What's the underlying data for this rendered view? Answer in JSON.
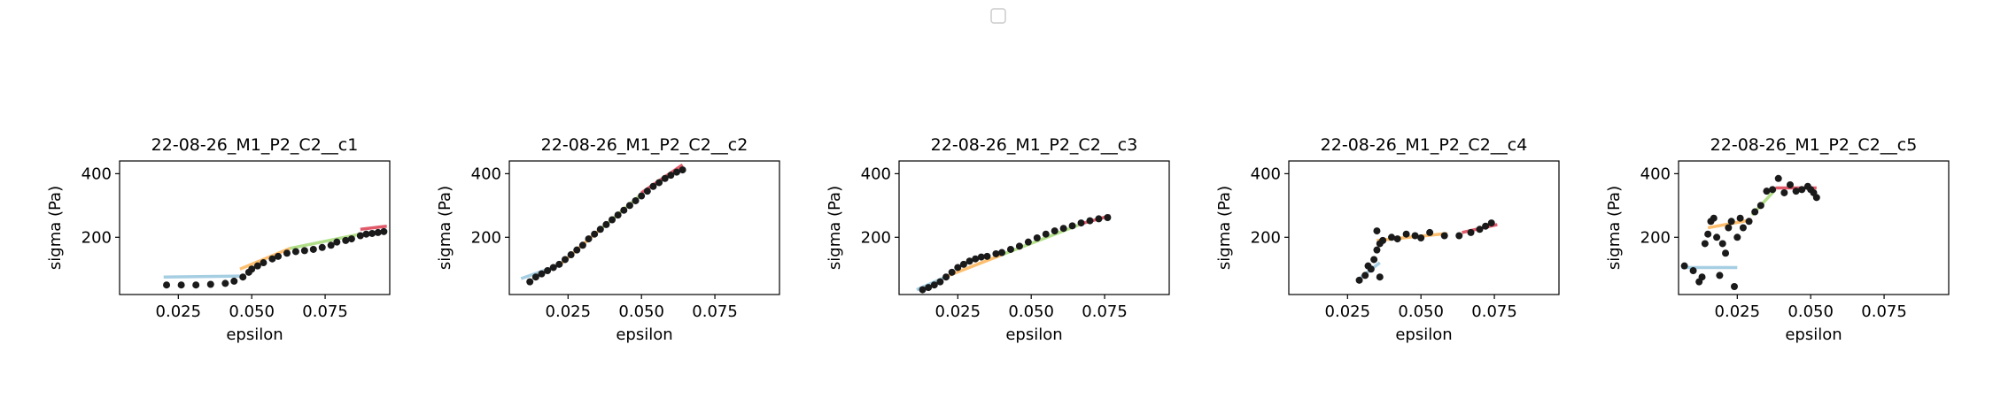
{
  "figure": {
    "legend_position": "top-center",
    "legend_entries": []
  },
  "colors": {
    "seg1": "#a6cee3",
    "seg2": "#fdbf6f",
    "seg3": "#b2df8a",
    "seg4": "#e05a6a",
    "points": "#1a1a1a"
  },
  "chart_data": [
    {
      "type": "scatter",
      "title": "22-08-26_M1_P2_C2__c1",
      "xlabel": "epsilon",
      "ylabel": "sigma (Pa)",
      "xlim": [
        0.005,
        0.097
      ],
      "ylim": [
        20,
        440
      ],
      "xticks": [
        0.025,
        0.05,
        0.075
      ],
      "xtick_labels": [
        "0.025",
        "0.050",
        "0.075"
      ],
      "yticks": [
        200,
        400
      ],
      "ytick_labels": [
        "200",
        "400"
      ],
      "points": [
        [
          0.021,
          50
        ],
        [
          0.026,
          50
        ],
        [
          0.031,
          50
        ],
        [
          0.036,
          52
        ],
        [
          0.041,
          55
        ],
        [
          0.044,
          62
        ],
        [
          0.047,
          75
        ],
        [
          0.049,
          90
        ],
        [
          0.05,
          100
        ],
        [
          0.052,
          110
        ],
        [
          0.054,
          120
        ],
        [
          0.057,
          132
        ],
        [
          0.059,
          140
        ],
        [
          0.062,
          150
        ],
        [
          0.065,
          155
        ],
        [
          0.068,
          158
        ],
        [
          0.071,
          162
        ],
        [
          0.074,
          168
        ],
        [
          0.077,
          175
        ],
        [
          0.079,
          185
        ],
        [
          0.082,
          190
        ],
        [
          0.084,
          195
        ],
        [
          0.087,
          205
        ],
        [
          0.089,
          210
        ],
        [
          0.091,
          212
        ],
        [
          0.093,
          215
        ],
        [
          0.095,
          218
        ]
      ],
      "fits": [
        {
          "name": "segment 1",
          "x": [
            0.02,
            0.046
          ],
          "y": [
            75,
            78
          ]
        },
        {
          "name": "segment 2",
          "x": [
            0.046,
            0.063
          ],
          "y": [
            100,
            165
          ]
        },
        {
          "name": "segment 3",
          "x": [
            0.063,
            0.087
          ],
          "y": [
            165,
            210
          ]
        },
        {
          "name": "segment 4",
          "x": [
            0.087,
            0.096
          ],
          "y": [
            225,
            235
          ]
        }
      ]
    },
    {
      "type": "scatter",
      "title": "22-08-26_M1_P2_C2__c2",
      "xlabel": "epsilon",
      "ylabel": "sigma (Pa)",
      "xlim": [
        0.005,
        0.097
      ],
      "ylim": [
        20,
        440
      ],
      "xticks": [
        0.025,
        0.05,
        0.075
      ],
      "xtick_labels": [
        "0.025",
        "0.050",
        "0.075"
      ],
      "yticks": [
        200,
        400
      ],
      "ytick_labels": [
        "200",
        "400"
      ],
      "points": [
        [
          0.012,
          60
        ],
        [
          0.014,
          75
        ],
        [
          0.016,
          85
        ],
        [
          0.018,
          95
        ],
        [
          0.02,
          105
        ],
        [
          0.022,
          115
        ],
        [
          0.024,
          130
        ],
        [
          0.026,
          145
        ],
        [
          0.028,
          160
        ],
        [
          0.03,
          175
        ],
        [
          0.032,
          195
        ],
        [
          0.034,
          210
        ],
        [
          0.036,
          225
        ],
        [
          0.038,
          240
        ],
        [
          0.04,
          255
        ],
        [
          0.042,
          270
        ],
        [
          0.044,
          285
        ],
        [
          0.046,
          300
        ],
        [
          0.048,
          315
        ],
        [
          0.05,
          330
        ],
        [
          0.052,
          345
        ],
        [
          0.054,
          360
        ],
        [
          0.056,
          372
        ],
        [
          0.058,
          385
        ],
        [
          0.06,
          395
        ],
        [
          0.062,
          405
        ],
        [
          0.064,
          412
        ]
      ],
      "fits": [
        {
          "name": "segment 1",
          "x": [
            0.009,
            0.022
          ],
          "y": [
            70,
            112
          ]
        },
        {
          "name": "segment 2",
          "x": [
            0.022,
            0.036
          ],
          "y": [
            112,
            225
          ]
        },
        {
          "name": "segment 3",
          "x": [
            0.036,
            0.05
          ],
          "y": [
            225,
            335
          ]
        },
        {
          "name": "segment 4",
          "x": [
            0.05,
            0.064
          ],
          "y": [
            340,
            428
          ]
        }
      ]
    },
    {
      "type": "scatter",
      "title": "22-08-26_M1_P2_C2__c3",
      "xlabel": "epsilon",
      "ylabel": "sigma (Pa)",
      "xlim": [
        0.005,
        0.097
      ],
      "ylim": [
        20,
        440
      ],
      "xticks": [
        0.025,
        0.05,
        0.075
      ],
      "xtick_labels": [
        "0.025",
        "0.050",
        "0.075"
      ],
      "yticks": [
        200,
        400
      ],
      "ytick_labels": [
        "200",
        "400"
      ],
      "points": [
        [
          0.013,
          35
        ],
        [
          0.015,
          42
        ],
        [
          0.017,
          50
        ],
        [
          0.019,
          60
        ],
        [
          0.021,
          75
        ],
        [
          0.023,
          90
        ],
        [
          0.025,
          105
        ],
        [
          0.027,
          115
        ],
        [
          0.029,
          125
        ],
        [
          0.031,
          132
        ],
        [
          0.033,
          138
        ],
        [
          0.035,
          140
        ],
        [
          0.038,
          148
        ],
        [
          0.04,
          152
        ],
        [
          0.043,
          162
        ],
        [
          0.046,
          172
        ],
        [
          0.049,
          185
        ],
        [
          0.052,
          198
        ],
        [
          0.055,
          210
        ],
        [
          0.058,
          220
        ],
        [
          0.061,
          228
        ],
        [
          0.064,
          236
        ],
        [
          0.067,
          245
        ],
        [
          0.07,
          252
        ],
        [
          0.073,
          258
        ],
        [
          0.076,
          262
        ]
      ],
      "fits": [
        {
          "name": "segment 1",
          "x": [
            0.011,
            0.022
          ],
          "y": [
            35,
            80
          ]
        },
        {
          "name": "segment 2",
          "x": [
            0.022,
            0.04
          ],
          "y": [
            80,
            145
          ]
        },
        {
          "name": "segment 3",
          "x": [
            0.04,
            0.066
          ],
          "y": [
            145,
            238
          ]
        },
        {
          "name": "segment 4",
          "x": [
            0.066,
            0.077
          ],
          "y": [
            240,
            268
          ]
        }
      ]
    },
    {
      "type": "scatter",
      "title": "22-08-26_M1_P2_C2__c4",
      "xlabel": "epsilon",
      "ylabel": "sigma (Pa)",
      "xlim": [
        0.005,
        0.097
      ],
      "ylim": [
        20,
        440
      ],
      "xticks": [
        0.025,
        0.05,
        0.075
      ],
      "xtick_labels": [
        "0.025",
        "0.050",
        "0.075"
      ],
      "yticks": [
        200,
        400
      ],
      "ytick_labels": [
        "200",
        "400"
      ],
      "points": [
        [
          0.029,
          65
        ],
        [
          0.031,
          80
        ],
        [
          0.032,
          110
        ],
        [
          0.033,
          100
        ],
        [
          0.034,
          130
        ],
        [
          0.035,
          160
        ],
        [
          0.035,
          220
        ],
        [
          0.036,
          180
        ],
        [
          0.036,
          75
        ],
        [
          0.037,
          190
        ],
        [
          0.04,
          200
        ],
        [
          0.042,
          195
        ],
        [
          0.045,
          210
        ],
        [
          0.048,
          205
        ],
        [
          0.05,
          198
        ],
        [
          0.053,
          215
        ],
        [
          0.058,
          205
        ],
        [
          0.063,
          205
        ],
        [
          0.067,
          215
        ],
        [
          0.07,
          225
        ],
        [
          0.072,
          235
        ],
        [
          0.074,
          245
        ]
      ],
      "fits": [
        {
          "name": "segment 1",
          "x": [
            0.029,
            0.036
          ],
          "y": [
            70,
            120
          ]
        },
        {
          "name": "segment 2",
          "x": [
            0.035,
            0.059
          ],
          "y": [
            190,
            212
          ]
        },
        {
          "name": "segment 4",
          "x": [
            0.064,
            0.076
          ],
          "y": [
            215,
            240
          ]
        }
      ]
    },
    {
      "type": "scatter",
      "title": "22-08-26_M1_P2_C2__c5",
      "xlabel": "epsilon",
      "ylabel": "sigma (Pa)",
      "xlim": [
        0.005,
        0.097
      ],
      "ylim": [
        20,
        440
      ],
      "xticks": [
        0.025,
        0.05,
        0.075
      ],
      "xtick_labels": [
        "0.025",
        "0.050",
        "0.075"
      ],
      "yticks": [
        200,
        400
      ],
      "ytick_labels": [
        "200",
        "400"
      ],
      "points": [
        [
          0.007,
          110
        ],
        [
          0.01,
          95
        ],
        [
          0.012,
          60
        ],
        [
          0.013,
          75
        ],
        [
          0.014,
          180
        ],
        [
          0.015,
          210
        ],
        [
          0.016,
          250
        ],
        [
          0.017,
          260
        ],
        [
          0.018,
          200
        ],
        [
          0.019,
          80
        ],
        [
          0.02,
          180
        ],
        [
          0.021,
          150
        ],
        [
          0.022,
          230
        ],
        [
          0.023,
          250
        ],
        [
          0.024,
          45
        ],
        [
          0.025,
          200
        ],
        [
          0.026,
          260
        ],
        [
          0.027,
          230
        ],
        [
          0.029,
          250
        ],
        [
          0.031,
          280
        ],
        [
          0.033,
          300
        ],
        [
          0.035,
          345
        ],
        [
          0.037,
          350
        ],
        [
          0.039,
          385
        ],
        [
          0.041,
          340
        ],
        [
          0.043,
          365
        ],
        [
          0.045,
          345
        ],
        [
          0.047,
          350
        ],
        [
          0.049,
          360
        ],
        [
          0.05,
          350
        ],
        [
          0.051,
          340
        ],
        [
          0.052,
          325
        ]
      ],
      "fits": [
        {
          "name": "segment 1",
          "x": [
            0.006,
            0.025
          ],
          "y": [
            105,
            105
          ]
        },
        {
          "name": "segment 2",
          "x": [
            0.015,
            0.03
          ],
          "y": [
            230,
            255
          ]
        },
        {
          "name": "segment 3",
          "x": [
            0.03,
            0.038
          ],
          "y": [
            270,
            350
          ]
        },
        {
          "name": "segment 4",
          "x": [
            0.038,
            0.052
          ],
          "y": [
            355,
            355
          ]
        }
      ]
    }
  ]
}
